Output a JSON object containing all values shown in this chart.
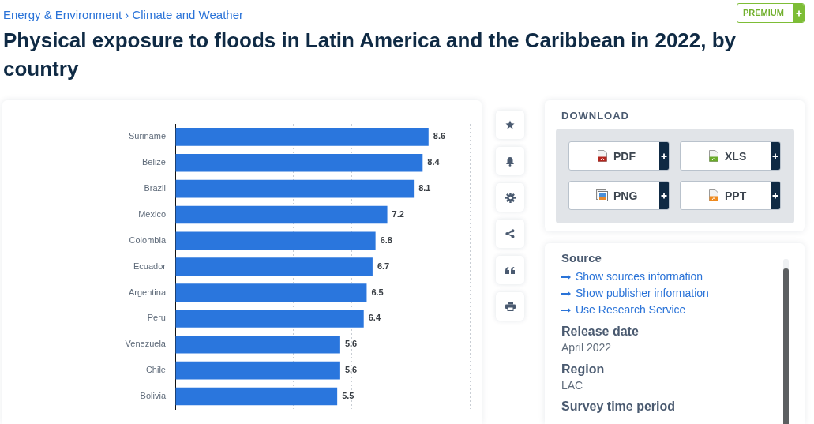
{
  "chart_data": {
    "type": "bar",
    "orientation": "horizontal",
    "title": "Physical exposure to floods in Latin America and the Caribbean in 2022, by country",
    "categories": [
      "Suriname",
      "Belize",
      "Brazil",
      "Mexico",
      "Colombia",
      "Ecuador",
      "Argentina",
      "Peru",
      "Venezuela",
      "Chile",
      "Bolivia"
    ],
    "values": [
      8.6,
      8.4,
      8.1,
      7.2,
      6.8,
      6.7,
      6.5,
      6.4,
      5.6,
      5.6,
      5.5
    ],
    "color": "#2a76dd",
    "xlim": [
      0,
      10
    ],
    "xticks": [
      {
        "value": 0,
        "label": null
      },
      {
        "value": 2,
        "label": null
      },
      {
        "value": 4,
        "label": null
      },
      {
        "value": 6,
        "label": null
      },
      {
        "value": 8,
        "label": null
      },
      {
        "value": 10,
        "label": null
      }
    ],
    "grid": "x",
    "tick_labels": "y",
    "data_labels": true,
    "annotations": [
      "Energy & Environment › Climate and Weather",
      "PREMIUM",
      "DOWNLOAD",
      "PDF",
      "XLS",
      "PNG",
      "PPT",
      "Source",
      "Show sources information",
      "Show publisher information",
      "Use Research Service",
      "Release date",
      "April 2022",
      "Region",
      "LAC",
      "Survey time period"
    ]
  }
}
